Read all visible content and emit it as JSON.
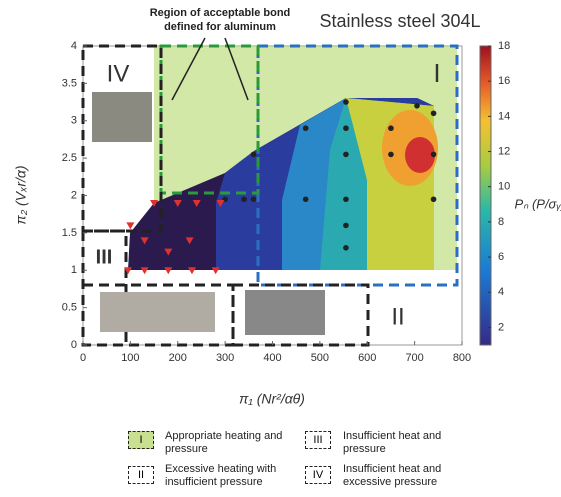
{
  "chart_data": {
    "type": "contour",
    "title": "Stainless steel 304L",
    "annotation": "Region of acceptable bond defined for aluminum",
    "x_label": "π₁ (Nr²/αθ)",
    "y_label": "π₂ (Vₓr/α)",
    "colorbar_label": "Pₙ (P/σᵧ)",
    "xlim": [
      0,
      800
    ],
    "xticks": [
      0,
      100,
      200,
      300,
      400,
      500,
      600,
      700,
      800
    ],
    "ylim": [
      0,
      4
    ],
    "yticks": [
      0,
      0.5,
      1,
      1.5,
      2,
      2.5,
      3,
      3.5,
      4
    ],
    "clim": [
      1,
      18
    ],
    "cticks": [
      2,
      4,
      6,
      8,
      10,
      12,
      14,
      16,
      18
    ],
    "grid": false,
    "series": [
      {
        "color": "#222222",
        "marker": "circle",
        "x": [
          555,
          705,
          740,
          470,
          555,
          650,
          360,
          555,
          650,
          740,
          300,
          340,
          360,
          470,
          555,
          740,
          555,
          555
        ],
        "y": [
          3.25,
          3.2,
          3.1,
          2.9,
          2.9,
          2.9,
          2.55,
          2.55,
          2.55,
          2.55,
          1.95,
          1.95,
          1.95,
          1.95,
          1.95,
          1.95,
          1.6,
          1.3
        ]
      },
      {
        "color": "#e03030",
        "marker": "triangle",
        "x": [
          95,
          130,
          180,
          230,
          280,
          180,
          100,
          150,
          200,
          240,
          290,
          130,
          225
        ],
        "y": [
          1.0,
          1.0,
          1.0,
          1.0,
          1.0,
          1.25,
          1.6,
          1.9,
          1.9,
          1.9,
          1.9,
          1.4,
          1.4
        ]
      }
    ],
    "regions": [
      {
        "label": "I",
        "description": "Appropriate heating and pressure"
      },
      {
        "label": "II",
        "description": "Excessive heating with insufficient pressure"
      },
      {
        "label": "III",
        "description": "Insufficient heat and pressure"
      },
      {
        "label": "IV",
        "description": "Insufficient heat and excessive pressure"
      }
    ]
  }
}
